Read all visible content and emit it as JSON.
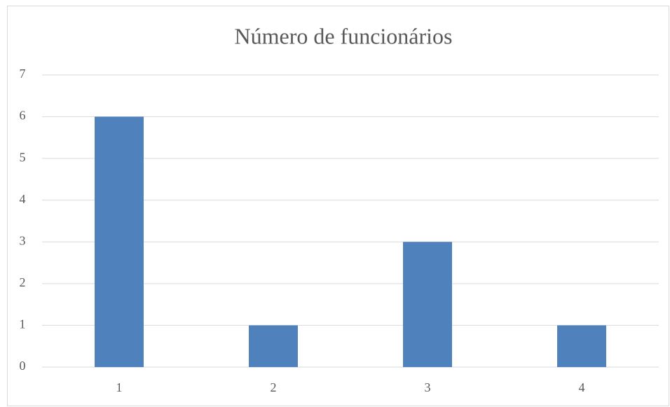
{
  "chart_data": {
    "type": "bar",
    "title": "Número de funcionários",
    "categories": [
      "1",
      "2",
      "3",
      "4"
    ],
    "values": [
      6,
      1,
      3,
      1
    ],
    "color": "#4f81bd",
    "ylim": [
      0,
      7
    ],
    "yticks": [
      0,
      1,
      2,
      3,
      4,
      5,
      6,
      7
    ],
    "grid": true
  }
}
